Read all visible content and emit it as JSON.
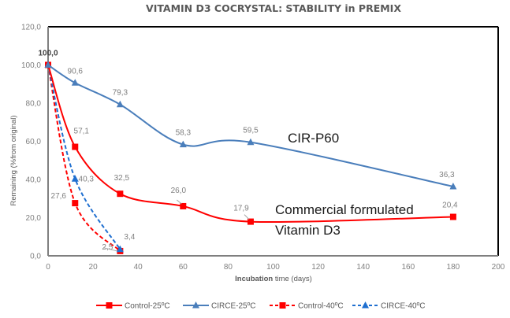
{
  "chart_data": {
    "type": "line",
    "title": "VITAMIN D3 COCRYSTAL: STABILITY in PREMIX",
    "xlabel_bold": "Incubation",
    "xlabel_rest": " time (days)",
    "xlabel": "Incubation time (days)",
    "ylabel": "Remaining (%from original)",
    "xlim": [
      0,
      200
    ],
    "ylim": [
      0,
      120
    ],
    "xticks": [
      0,
      20,
      40,
      60,
      80,
      100,
      120,
      140,
      160,
      180,
      200
    ],
    "xtick_labels": [
      "0",
      "20",
      "40",
      "60",
      "80",
      "100",
      "120",
      "140",
      "160",
      "180",
      "200"
    ],
    "yticks": [
      0,
      20,
      40,
      60,
      80,
      100,
      120
    ],
    "ytick_labels": [
      "0,0",
      "20,0",
      "40,0",
      "60,0",
      "80,0",
      "100,0",
      "120,0"
    ],
    "grid": false,
    "legend_position": "bottom",
    "series": [
      {
        "name": "Control-25ºC",
        "color": "#ff0000",
        "dashed": false,
        "marker": "square",
        "x": [
          0,
          12,
          32,
          60,
          90,
          180
        ],
        "values": [
          100.0,
          57.1,
          32.5,
          26.0,
          17.9,
          20.4
        ],
        "labels": [
          "100,0",
          "57,1",
          "32,5",
          "26,0",
          "17,9",
          "20,4"
        ]
      },
      {
        "name": "CIRCE-25ºC",
        "color": "#4a7ebb",
        "dashed": false,
        "marker": "triangle",
        "x": [
          0,
          12,
          32,
          60,
          90,
          180
        ],
        "values": [
          100.0,
          90.6,
          79.3,
          58.3,
          59.5,
          36.3
        ],
        "labels": [
          "",
          "90,6",
          "79,3",
          "58,3",
          "59,5",
          "36,3"
        ]
      },
      {
        "name": "Control-40ºC",
        "color": "#ff0000",
        "dashed": true,
        "marker": "square",
        "x": [
          0,
          12,
          32
        ],
        "values": [
          100.0,
          27.6,
          2.5
        ],
        "labels": [
          "",
          "27,6",
          "2,5"
        ]
      },
      {
        "name": "CIRCE-40ºC",
        "color": "#1f6fd0",
        "dashed": true,
        "marker": "triangle",
        "x": [
          0,
          12,
          32
        ],
        "values": [
          100.0,
          40.3,
          3.4
        ],
        "labels": [
          "",
          "40,3",
          "3,4"
        ]
      }
    ],
    "annotations": [
      {
        "text": "CIR-P60"
      },
      {
        "text": "Commercial formulated"
      },
      {
        "text": "Vitamin D3"
      }
    ]
  }
}
